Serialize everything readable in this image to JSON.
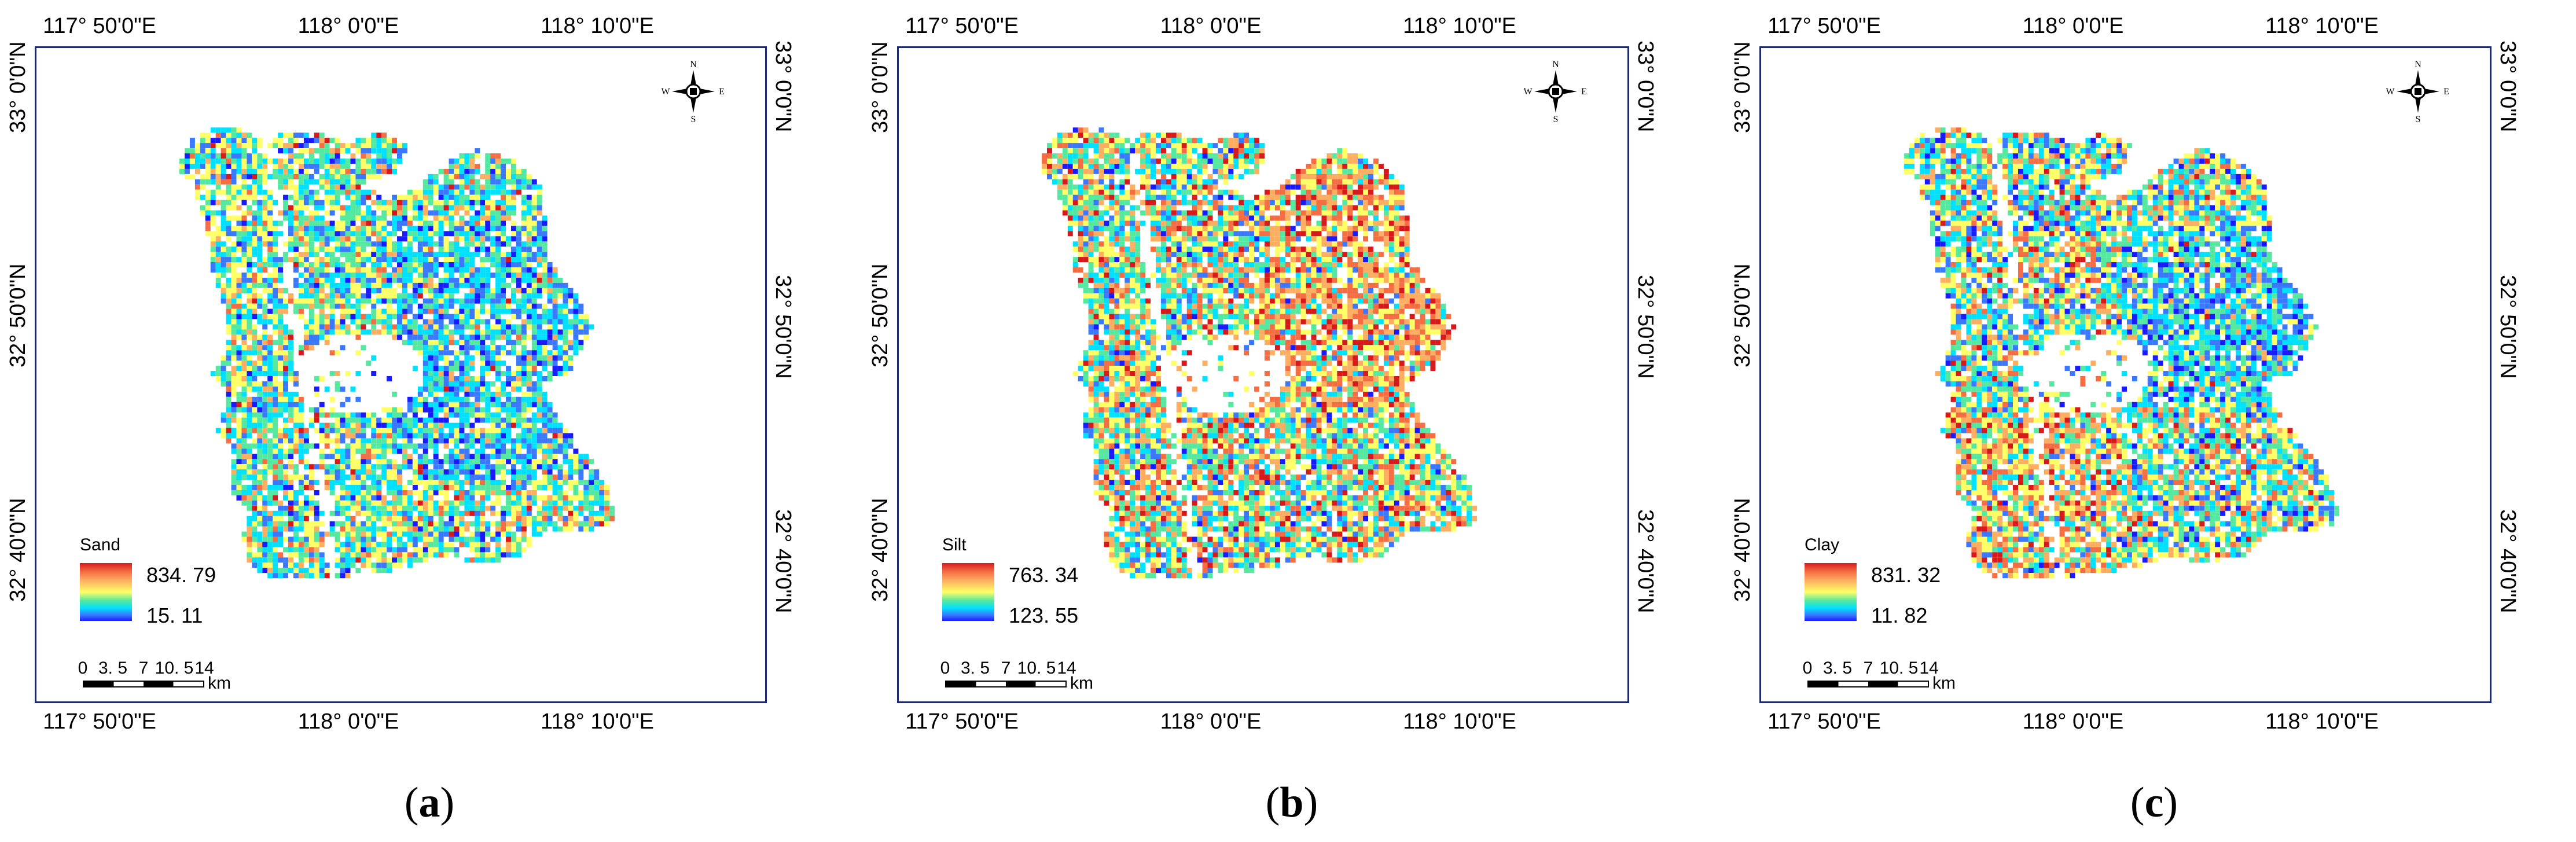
{
  "figure": {
    "panels": [
      {
        "id": "a",
        "caption_letter": "a",
        "legend": {
          "title": "Sand",
          "max": "834. 79",
          "min": "15. 11"
        },
        "palette": [
          "#1a1aff",
          "#3a78ff",
          "#00e0ff",
          "#55e8a0",
          "#ffff66",
          "#fdae61",
          "#f46d43",
          "#d7191c"
        ],
        "palette_weights": [
          0.04,
          0.12,
          0.22,
          0.22,
          0.24,
          0.09,
          0.05,
          0.02
        ]
      },
      {
        "id": "b",
        "caption_letter": "b",
        "legend": {
          "title": "Silt",
          "max": "763. 34",
          "min": "123. 55"
        },
        "palette": [
          "#1a1aff",
          "#3a78ff",
          "#00e0ff",
          "#55e8a0",
          "#ffff66",
          "#fdae61",
          "#f46d43",
          "#d7191c"
        ],
        "palette_weights": [
          0.03,
          0.08,
          0.18,
          0.2,
          0.2,
          0.14,
          0.11,
          0.06
        ]
      },
      {
        "id": "c",
        "caption_letter": "c",
        "legend": {
          "title": "Clay",
          "max": "831. 32",
          "min": "11. 82"
        },
        "palette": [
          "#1a1aff",
          "#3a78ff",
          "#00e0ff",
          "#55e8a0",
          "#ffff66",
          "#fdae61",
          "#f46d43",
          "#d7191c"
        ],
        "palette_weights": [
          0.05,
          0.12,
          0.2,
          0.18,
          0.22,
          0.12,
          0.08,
          0.03
        ]
      }
    ],
    "axis_labels": {
      "lon": [
        "117° 50'0\"E",
        "118° 0'0\"E",
        "118° 10'0\"E"
      ],
      "lat": [
        "33° 0'0\"N",
        "32° 50'0\"N",
        "32° 40'0\"N"
      ]
    },
    "compass": {
      "n": "N",
      "s": "S",
      "e": "E",
      "w": "W"
    },
    "scalebar": {
      "labels": [
        "0",
        "3. 5",
        "7",
        "10. 5",
        "14"
      ],
      "unit": "km"
    },
    "caption_parens": {
      "open": "(",
      "close": ")"
    }
  }
}
